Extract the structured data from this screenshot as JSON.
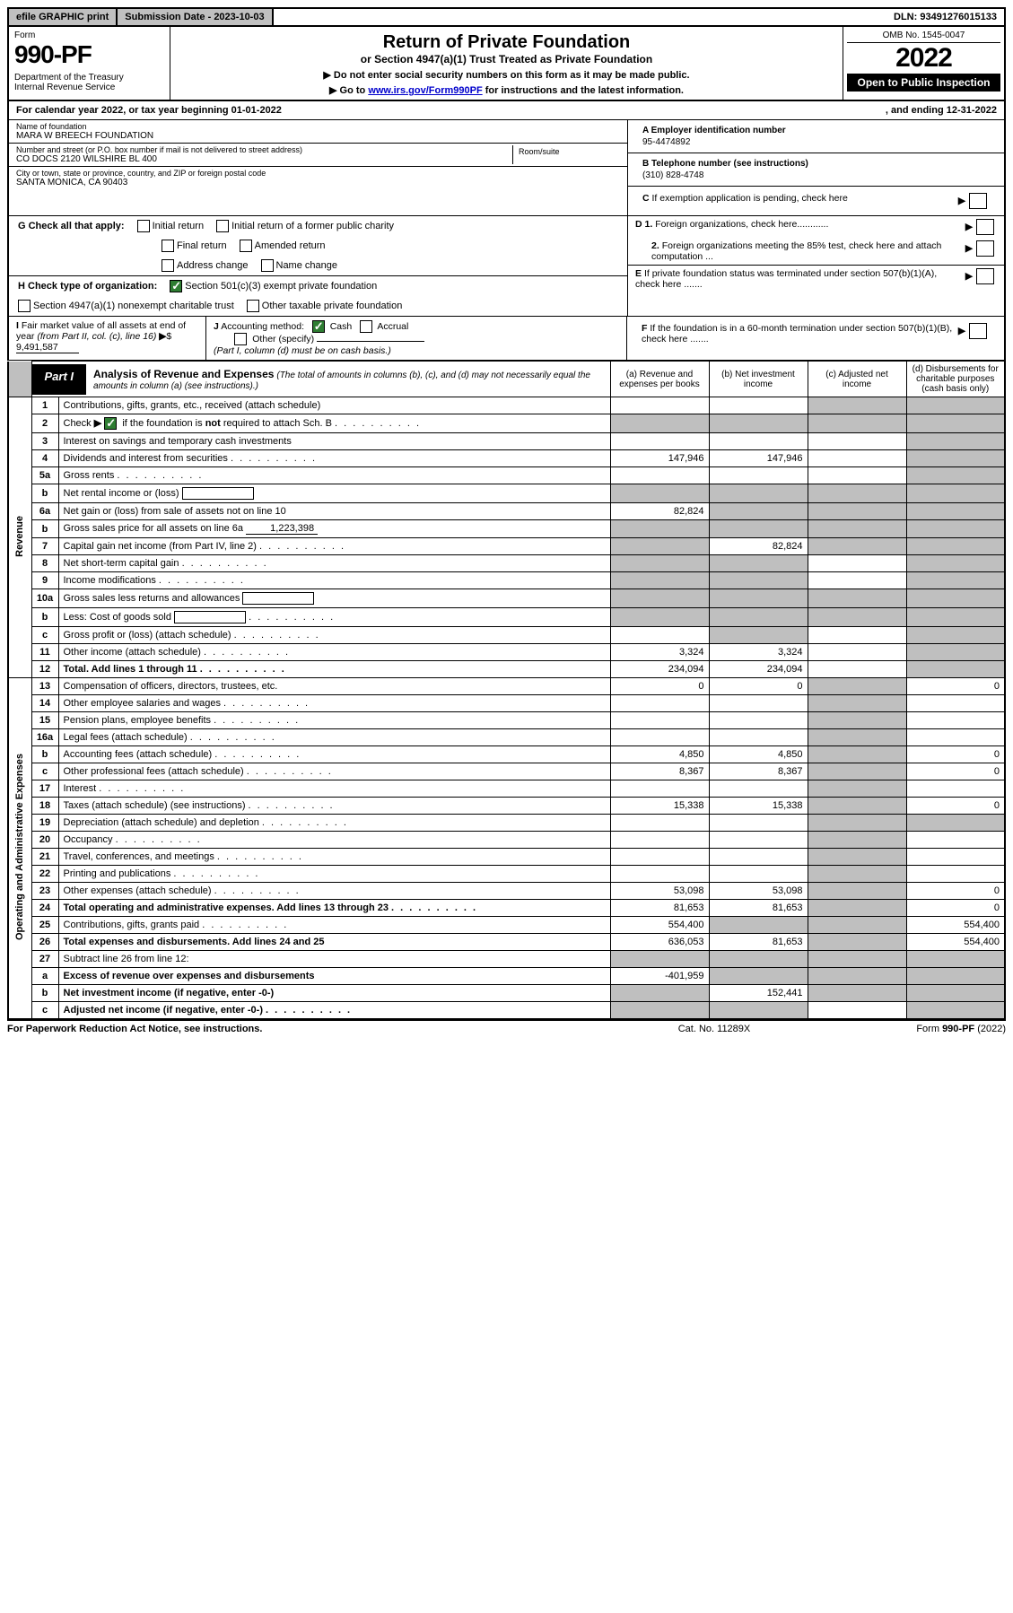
{
  "top": {
    "efile": "efile GRAPHIC print",
    "submission_label": "Submission Date - 2023-10-03",
    "dln": "DLN: 93491276015133"
  },
  "header": {
    "form_word": "Form",
    "form_number": "990-PF",
    "dept": "Department of the Treasury\nInternal Revenue Service",
    "title": "Return of Private Foundation",
    "subtitle": "or Section 4947(a)(1) Trust Treated as Private Foundation",
    "note1": "▶ Do not enter social security numbers on this form as it may be made public.",
    "note2_pre": "▶ Go to ",
    "note2_link": "www.irs.gov/Form990PF",
    "note2_post": " for instructions and the latest information.",
    "omb": "OMB No. 1545-0047",
    "year": "2022",
    "open": "Open to Public Inspection"
  },
  "calendar": {
    "text_l": "For calendar year 2022, or tax year beginning 01-01-2022",
    "text_r": ", and ending 12-31-2022"
  },
  "entity": {
    "name_label": "Name of foundation",
    "name": "MARA W BREECH FOUNDATION",
    "addr_label": "Number and street (or P.O. box number if mail is not delivered to street address)",
    "addr": "CO DOCS 2120 WILSHIRE BL 400",
    "room_label": "Room/suite",
    "city_label": "City or town, state or province, country, and ZIP or foreign postal code",
    "city": "SANTA MONICA, CA  90403",
    "a_label": "A Employer identification number",
    "a_val": "95-4474892",
    "b_label": "B Telephone number (see instructions)",
    "b_val": "(310) 828-4748",
    "c_label": "C If exemption application is pending, check here"
  },
  "checks": {
    "g_label": "G Check all that apply:",
    "g_opts": [
      "Initial return",
      "Initial return of a former public charity",
      "Final return",
      "Amended return",
      "Address change",
      "Name change"
    ],
    "h_label": "H Check type of organization:",
    "h_opt1": "Section 501(c)(3) exempt private foundation",
    "h_opt2": "Section 4947(a)(1) nonexempt charitable trust",
    "h_opt3": "Other taxable private foundation",
    "d1": "D 1. Foreign organizations, check here............",
    "d2": "2. Foreign organizations meeting the 85% test, check here and attach computation ...",
    "e": "E  If private foundation status was terminated under section 507(b)(1)(A), check here .......",
    "f": "F  If the foundation is in a 60-month termination under section 507(b)(1)(B), check here .......",
    "i_label": "I Fair market value of all assets at end of year (from Part II, col. (c), line 16)",
    "i_val": "9,491,587",
    "j_label": "J Accounting method:",
    "j_cash": "Cash",
    "j_accrual": "Accrual",
    "j_other": "Other (specify)",
    "j_note": "(Part I, column (d) must be on cash basis.)"
  },
  "part1": {
    "label": "Part I",
    "title": "Analysis of Revenue and Expenses",
    "note": "(The total of amounts in columns (b), (c), and (d) may not necessarily equal the amounts in column (a) (see instructions).)",
    "cols": {
      "a": "(a)  Revenue and expenses per books",
      "b": "(b)  Net investment income",
      "c": "(c)  Adjusted net income",
      "d": "(d)  Disbursements for charitable purposes (cash basis only)"
    }
  },
  "sides": {
    "rev": "Revenue",
    "exp": "Operating and Administrative Expenses"
  },
  "rows": [
    {
      "n": "1",
      "d": "Contributions, gifts, grants, etc., received (attach schedule)",
      "a": "",
      "b": "",
      "c": "g",
      "dd": "g"
    },
    {
      "n": "2",
      "d": "Check ▶ [x] if the foundation is not required to attach Sch. B",
      "dots": true,
      "a": "g",
      "b": "g",
      "c": "g",
      "dd": "g"
    },
    {
      "n": "3",
      "d": "Interest on savings and temporary cash investments",
      "a": "",
      "b": "",
      "c": "",
      "dd": "g"
    },
    {
      "n": "4",
      "d": "Dividends and interest from securities",
      "dots": true,
      "a": "147,946",
      "b": "147,946",
      "c": "",
      "dd": "g"
    },
    {
      "n": "5a",
      "d": "Gross rents",
      "dots": true,
      "a": "",
      "b": "",
      "c": "",
      "dd": "g"
    },
    {
      "n": "b",
      "d": "Net rental income or (loss)",
      "inlinebox": true,
      "a": "g",
      "b": "g",
      "c": "g",
      "dd": "g"
    },
    {
      "n": "6a",
      "d": "Net gain or (loss) from sale of assets not on line 10",
      "a": "82,824",
      "b": "g",
      "c": "g",
      "dd": "g"
    },
    {
      "n": "b",
      "d": "Gross sales price for all assets on line 6a",
      "inlineval": "1,223,398",
      "a": "g",
      "b": "g",
      "c": "g",
      "dd": "g"
    },
    {
      "n": "7",
      "d": "Capital gain net income (from Part IV, line 2)",
      "dots": true,
      "a": "g",
      "b": "82,824",
      "c": "g",
      "dd": "g"
    },
    {
      "n": "8",
      "d": "Net short-term capital gain",
      "dots": true,
      "a": "g",
      "b": "g",
      "c": "",
      "dd": "g"
    },
    {
      "n": "9",
      "d": "Income modifications",
      "dots": true,
      "a": "g",
      "b": "g",
      "c": "",
      "dd": "g"
    },
    {
      "n": "10a",
      "d": "Gross sales less returns and allowances",
      "inlinebox": true,
      "a": "g",
      "b": "g",
      "c": "g",
      "dd": "g"
    },
    {
      "n": "b",
      "d": "Less: Cost of goods sold",
      "dots": true,
      "inlinebox": true,
      "a": "g",
      "b": "g",
      "c": "g",
      "dd": "g"
    },
    {
      "n": "c",
      "d": "Gross profit or (loss) (attach schedule)",
      "dots": true,
      "a": "",
      "b": "g",
      "c": "",
      "dd": "g"
    },
    {
      "n": "11",
      "d": "Other income (attach schedule)",
      "dots": true,
      "a": "3,324",
      "b": "3,324",
      "c": "",
      "dd": "g"
    },
    {
      "n": "12",
      "d": "Total. Add lines 1 through 11",
      "dots": true,
      "b2": true,
      "a": "234,094",
      "b": "234,094",
      "c": "",
      "dd": "g"
    },
    {
      "n": "13",
      "d": "Compensation of officers, directors, trustees, etc.",
      "a": "0",
      "b": "0",
      "c": "g",
      "dd": "0"
    },
    {
      "n": "14",
      "d": "Other employee salaries and wages",
      "dots": true,
      "a": "",
      "b": "",
      "c": "g",
      "dd": ""
    },
    {
      "n": "15",
      "d": "Pension plans, employee benefits",
      "dots": true,
      "a": "",
      "b": "",
      "c": "g",
      "dd": ""
    },
    {
      "n": "16a",
      "d": "Legal fees (attach schedule)",
      "dots": true,
      "a": "",
      "b": "",
      "c": "g",
      "dd": ""
    },
    {
      "n": "b",
      "d": "Accounting fees (attach schedule)",
      "dots": true,
      "a": "4,850",
      "b": "4,850",
      "c": "g",
      "dd": "0"
    },
    {
      "n": "c",
      "d": "Other professional fees (attach schedule)",
      "dots": true,
      "a": "8,367",
      "b": "8,367",
      "c": "g",
      "dd": "0"
    },
    {
      "n": "17",
      "d": "Interest",
      "dots": true,
      "a": "",
      "b": "",
      "c": "g",
      "dd": ""
    },
    {
      "n": "18",
      "d": "Taxes (attach schedule) (see instructions)",
      "dots": true,
      "a": "15,338",
      "b": "15,338",
      "c": "g",
      "dd": "0"
    },
    {
      "n": "19",
      "d": "Depreciation (attach schedule) and depletion",
      "dots": true,
      "a": "",
      "b": "",
      "c": "g",
      "dd": "g"
    },
    {
      "n": "20",
      "d": "Occupancy",
      "dots": true,
      "a": "",
      "b": "",
      "c": "g",
      "dd": ""
    },
    {
      "n": "21",
      "d": "Travel, conferences, and meetings",
      "dots": true,
      "a": "",
      "b": "",
      "c": "g",
      "dd": ""
    },
    {
      "n": "22",
      "d": "Printing and publications",
      "dots": true,
      "a": "",
      "b": "",
      "c": "g",
      "dd": ""
    },
    {
      "n": "23",
      "d": "Other expenses (attach schedule)",
      "dots": true,
      "a": "53,098",
      "b": "53,098",
      "c": "g",
      "dd": "0"
    },
    {
      "n": "24",
      "d": "Total operating and administrative expenses. Add lines 13 through 23",
      "dots": true,
      "b2": true,
      "a": "81,653",
      "b": "81,653",
      "c": "g",
      "dd": "0"
    },
    {
      "n": "25",
      "d": "Contributions, gifts, grants paid",
      "dots": true,
      "a": "554,400",
      "b": "g",
      "c": "g",
      "dd": "554,400"
    },
    {
      "n": "26",
      "d": "Total expenses and disbursements. Add lines 24 and 25",
      "b2": true,
      "a": "636,053",
      "b": "81,653",
      "c": "g",
      "dd": "554,400"
    },
    {
      "n": "27",
      "d": "Subtract line 26 from line 12:",
      "a": "g",
      "b": "g",
      "c": "g",
      "dd": "g"
    },
    {
      "n": "a",
      "d": "Excess of revenue over expenses and disbursements",
      "b2": true,
      "a": "-401,959",
      "b": "g",
      "c": "g",
      "dd": "g"
    },
    {
      "n": "b",
      "d": "Net investment income (if negative, enter -0-)",
      "b2": true,
      "a": "g",
      "b": "152,441",
      "c": "g",
      "dd": "g"
    },
    {
      "n": "c",
      "d": "Adjusted net income (if negative, enter -0-)",
      "dots": true,
      "b2": true,
      "a": "g",
      "b": "g",
      "c": "",
      "dd": "g"
    }
  ],
  "footer": {
    "l": "For Paperwork Reduction Act Notice, see instructions.",
    "m": "Cat. No. 11289X",
    "r": "Form 990-PF (2022)"
  },
  "colors": {
    "grey": "#bfbfbf",
    "green": "#2e7d32",
    "link": "#0000cc"
  }
}
